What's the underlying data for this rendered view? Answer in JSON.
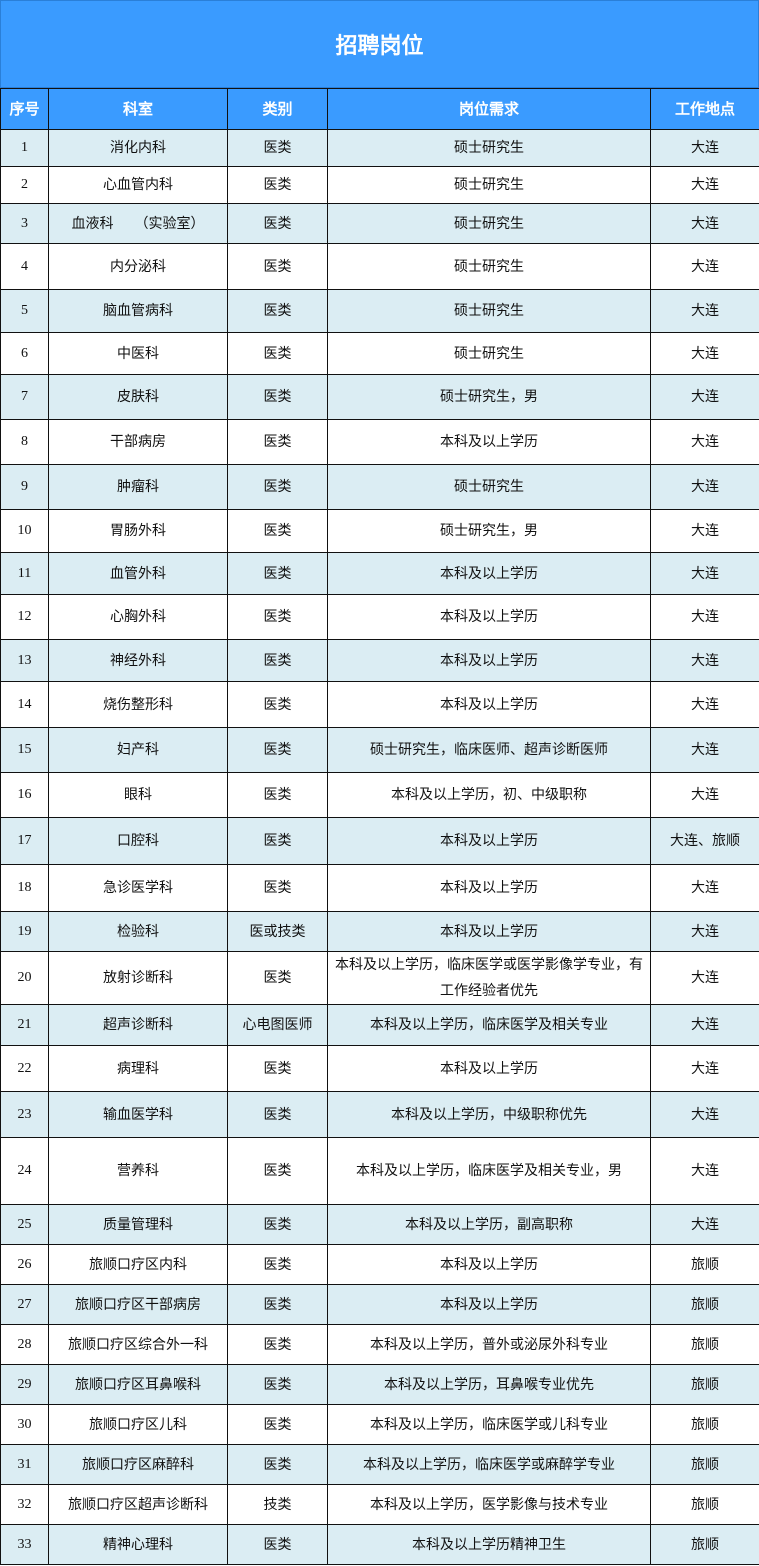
{
  "title": "招聘岗位",
  "colors": {
    "header": "#3a9bff",
    "alt_row": "#dbedf3"
  },
  "columns": [
    "序号",
    "科室",
    "类别",
    "岗位需求",
    "工作地点"
  ],
  "rows": [
    [
      "1",
      "消化内科",
      "医类",
      "硕士研究生",
      "大连"
    ],
    [
      "2",
      "心血管内科",
      "医类",
      "硕士研究生",
      "大连"
    ],
    [
      "3",
      "血液科　　（实验室）",
      "医类",
      "硕士研究生",
      "大连"
    ],
    [
      "4",
      "内分泌科",
      "医类",
      "硕士研究生",
      "大连"
    ],
    [
      "5",
      "脑血管病科",
      "医类",
      "硕士研究生",
      "大连"
    ],
    [
      "6",
      "中医科",
      "医类",
      "硕士研究生",
      "大连"
    ],
    [
      "7",
      "皮肤科",
      "医类",
      "硕士研究生，男",
      "大连"
    ],
    [
      "8",
      "干部病房",
      "医类",
      "本科及以上学历",
      "大连"
    ],
    [
      "9",
      "肿瘤科",
      "医类",
      "硕士研究生",
      "大连"
    ],
    [
      "10",
      "胃肠外科",
      "医类",
      "硕士研究生，男",
      "大连"
    ],
    [
      "11",
      "血管外科",
      "医类",
      "本科及以上学历",
      "大连"
    ],
    [
      "12",
      "心胸外科",
      "医类",
      "本科及以上学历",
      "大连"
    ],
    [
      "13",
      "神经外科",
      "医类",
      "本科及以上学历",
      "大连"
    ],
    [
      "14",
      "烧伤整形科",
      "医类",
      "本科及以上学历",
      "大连"
    ],
    [
      "15",
      "妇产科",
      "医类",
      "硕士研究生，临床医师、超声诊断医师",
      "大连"
    ],
    [
      "16",
      "眼科",
      "医类",
      "本科及以上学历，初、中级职称",
      "大连"
    ],
    [
      "17",
      "口腔科",
      "医类",
      "本科及以上学历",
      "大连、旅顺"
    ],
    [
      "18",
      "急诊医学科",
      "医类",
      "本科及以上学历",
      "大连"
    ],
    [
      "19",
      "检验科",
      "医或技类",
      "本科及以上学历",
      "大连"
    ],
    [
      "20",
      "放射诊断科",
      "医类",
      "本科及以上学历，临床医学或医学影像学专业，有工作经验者优先",
      "大连"
    ],
    [
      "21",
      "超声诊断科",
      "心电图医师",
      "本科及以上学历，临床医学及相关专业",
      "大连"
    ],
    [
      "22",
      "病理科",
      "医类",
      "本科及以上学历",
      "大连"
    ],
    [
      "23",
      "输血医学科",
      "医类",
      "本科及以上学历，中级职称优先",
      "大连"
    ],
    [
      "24",
      "营养科",
      "医类",
      "本科及以上学历，临床医学及相关专业，男",
      "大连"
    ],
    [
      "25",
      "质量管理科",
      "医类",
      "本科及以上学历，副高职称",
      "大连"
    ],
    [
      "26",
      "旅顺口疗区内科",
      "医类",
      "本科及以上学历",
      "旅顺"
    ],
    [
      "27",
      "旅顺口疗区干部病房",
      "医类",
      "本科及以上学历",
      "旅顺"
    ],
    [
      "28",
      "旅顺口疗区综合外一科",
      "医类",
      "本科及以上学历，普外或泌尿外科专业",
      "旅顺"
    ],
    [
      "29",
      "旅顺口疗区耳鼻喉科",
      "医类",
      "本科及以上学历，耳鼻喉专业优先",
      "旅顺"
    ],
    [
      "30",
      "旅顺口疗区儿科",
      "医类",
      "本科及以上学历，临床医学或儿科专业",
      "旅顺"
    ],
    [
      "31",
      "旅顺口疗区麻醉科",
      "医类",
      "本科及以上学历，临床医学或麻醉学专业",
      "旅顺"
    ],
    [
      "32",
      "旅顺口疗区超声诊断科",
      "技类",
      "本科及以上学历，医学影像与技术专业",
      "旅顺"
    ],
    [
      "33",
      "精神心理科",
      "医类",
      "本科及以上学历精神卫生",
      "旅顺"
    ]
  ]
}
